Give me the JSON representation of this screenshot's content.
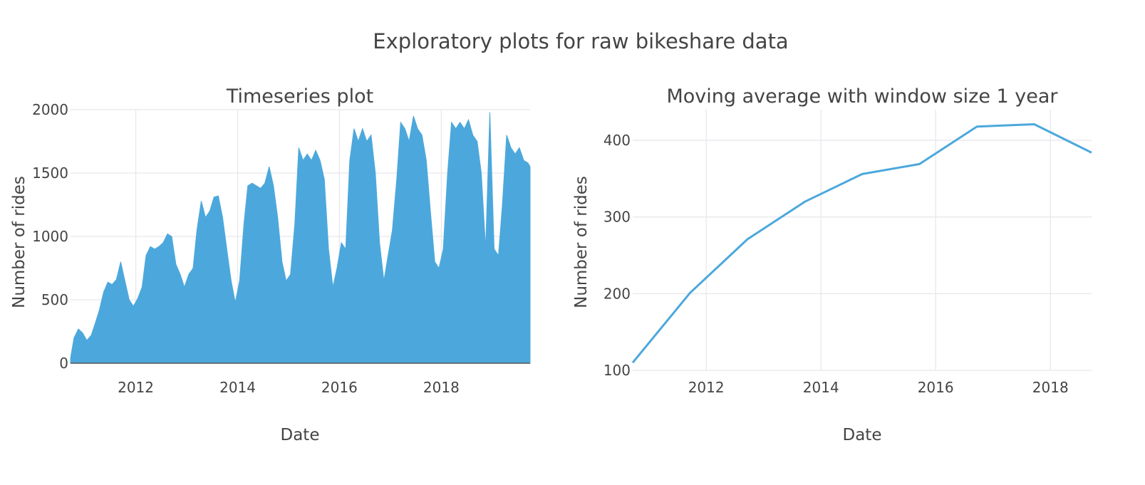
{
  "figure": {
    "title": "Exploratory plots for raw bikeshare data",
    "accent_color": "#4ca8dc"
  },
  "chart_data": [
    {
      "type": "area",
      "title": "Timeseries plot",
      "xlabel": "Date",
      "ylabel": "Number of rides",
      "x_range": [
        "2010-09-20",
        "2019-09-30"
      ],
      "ylim": [
        0,
        2000
      ],
      "x_ticks": [
        "2012-01-01",
        "2014-01-01",
        "2016-01-01",
        "2018-01-01"
      ],
      "x_tick_labels": [
        "2012",
        "2014",
        "2016",
        "2018"
      ],
      "y_ticks": [
        0,
        500,
        1000,
        1500,
        2000
      ],
      "y_tick_labels": [
        "0",
        "500",
        "1000",
        "1500",
        "2000"
      ],
      "grid": true,
      "series": [
        {
          "color": "#4ca8dc",
          "note_values": "approximate envelope of the daily ride counts (drawn as a filled area down to 0)",
          "x": [
            "2010-09-20",
            "2010-10-15",
            "2010-11-15",
            "2010-12-15",
            "2011-01-15",
            "2011-02-15",
            "2011-03-15",
            "2011-04-15",
            "2011-05-15",
            "2011-06-15",
            "2011-07-15",
            "2011-08-15",
            "2011-09-15",
            "2011-10-15",
            "2011-11-15",
            "2011-12-15",
            "2012-01-15",
            "2012-02-15",
            "2012-03-15",
            "2012-04-15",
            "2012-05-15",
            "2012-06-15",
            "2012-07-15",
            "2012-08-15",
            "2012-09-15",
            "2012-10-15",
            "2012-11-15",
            "2012-12-15",
            "2013-01-15",
            "2013-02-15",
            "2013-03-15",
            "2013-04-15",
            "2013-05-15",
            "2013-06-15",
            "2013-07-15",
            "2013-08-15",
            "2013-09-15",
            "2013-10-15",
            "2013-11-15",
            "2013-12-15",
            "2014-01-15",
            "2014-02-15",
            "2014-03-15",
            "2014-04-15",
            "2014-05-15",
            "2014-06-15",
            "2014-07-15",
            "2014-08-15",
            "2014-09-15",
            "2014-10-15",
            "2014-11-15",
            "2014-12-15",
            "2015-01-15",
            "2015-02-15",
            "2015-03-15",
            "2015-04-15",
            "2015-05-15",
            "2015-06-15",
            "2015-07-15",
            "2015-08-15",
            "2015-09-15",
            "2015-10-15",
            "2015-11-15",
            "2015-12-15",
            "2016-01-15",
            "2016-02-15",
            "2016-03-15",
            "2016-04-15",
            "2016-05-15",
            "2016-06-15",
            "2016-07-15",
            "2016-08-15",
            "2016-09-15",
            "2016-10-15",
            "2016-11-15",
            "2016-12-15",
            "2017-01-15",
            "2017-02-15",
            "2017-03-15",
            "2017-04-15",
            "2017-05-15",
            "2017-06-15",
            "2017-07-15",
            "2017-08-15",
            "2017-09-15",
            "2017-10-15",
            "2017-11-15",
            "2017-12-15",
            "2018-01-15",
            "2018-02-15",
            "2018-03-15",
            "2018-04-15",
            "2018-05-15",
            "2018-06-15",
            "2018-07-15",
            "2018-08-15",
            "2018-09-15",
            "2018-10-15",
            "2018-11-15",
            "2018-12-15",
            "2019-01-15",
            "2019-02-15",
            "2019-03-15",
            "2019-04-15",
            "2019-05-15",
            "2019-06-15",
            "2019-07-15",
            "2019-08-15",
            "2019-09-15",
            "2019-09-30"
          ],
          "y": [
            40,
            200,
            270,
            240,
            180,
            220,
            310,
            420,
            560,
            640,
            620,
            660,
            800,
            650,
            500,
            450,
            510,
            600,
            850,
            920,
            900,
            920,
            950,
            1020,
            1000,
            780,
            700,
            600,
            700,
            750,
            1050,
            1280,
            1150,
            1200,
            1310,
            1320,
            1150,
            900,
            650,
            480,
            650,
            1100,
            1400,
            1420,
            1400,
            1380,
            1420,
            1550,
            1400,
            1150,
            800,
            650,
            700,
            1100,
            1700,
            1600,
            1650,
            1600,
            1680,
            1600,
            1450,
            900,
            600,
            750,
            950,
            900,
            1600,
            1850,
            1750,
            1850,
            1750,
            1800,
            1500,
            950,
            650,
            850,
            1050,
            1450,
            1900,
            1850,
            1750,
            1950,
            1850,
            1800,
            1600,
            1200,
            800,
            750,
            900,
            1500,
            1900,
            1850,
            1900,
            1850,
            1920,
            1800,
            1750,
            1500,
            900,
            1980,
            900,
            850,
            1250,
            1800,
            1700,
            1650,
            1700,
            1600,
            1580,
            1550
          ]
        }
      ]
    },
    {
      "type": "line",
      "title": "Moving average with window size 1 year",
      "xlabel": "Date",
      "ylabel": "Number of rides",
      "x_range": [
        "2010-09-20",
        "2018-09-20"
      ],
      "ylim": [
        100,
        440
      ],
      "x_ticks": [
        "2012-01-01",
        "2014-01-01",
        "2016-01-01",
        "2018-01-01"
      ],
      "x_tick_labels": [
        "2012",
        "2014",
        "2016",
        "2018"
      ],
      "y_ticks": [
        100,
        200,
        300,
        400
      ],
      "y_tick_labels": [
        "100",
        "200",
        "300",
        "400"
      ],
      "grid": true,
      "series": [
        {
          "color": "#4ca8dc",
          "x": [
            "2010-09-20",
            "2011-09-20",
            "2012-09-20",
            "2013-09-20",
            "2014-09-20",
            "2015-09-20",
            "2016-09-20",
            "2017-09-20",
            "2018-09-20"
          ],
          "y": [
            110,
            201,
            271,
            320,
            356,
            369,
            418,
            421,
            384
          ]
        }
      ]
    }
  ]
}
